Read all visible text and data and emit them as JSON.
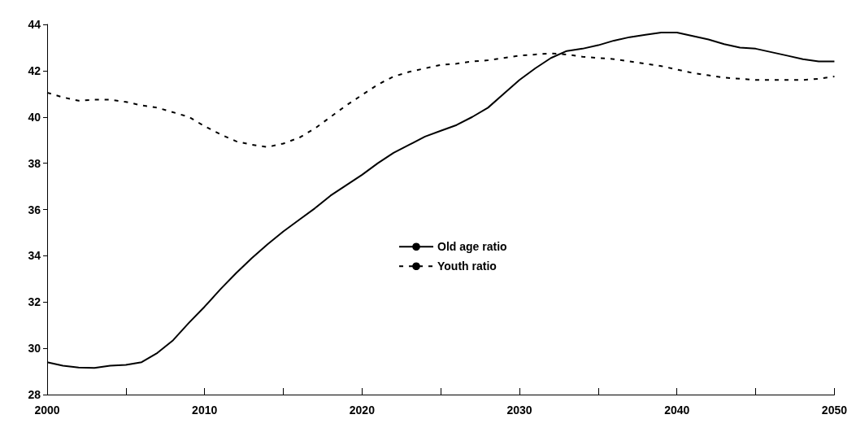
{
  "chart_data": {
    "type": "line",
    "x": [
      2000,
      2001,
      2002,
      2003,
      2004,
      2005,
      2006,
      2007,
      2008,
      2009,
      2010,
      2011,
      2012,
      2013,
      2014,
      2015,
      2016,
      2017,
      2018,
      2019,
      2020,
      2021,
      2022,
      2023,
      2024,
      2025,
      2026,
      2027,
      2028,
      2029,
      2030,
      2031,
      2032,
      2033,
      2034,
      2035,
      2036,
      2037,
      2038,
      2039,
      2040,
      2041,
      2042,
      2043,
      2044,
      2045,
      2046,
      2047,
      2048,
      2049,
      2050
    ],
    "series": [
      {
        "name": "Old age ratio",
        "color": "#000000",
        "line_style": "solid",
        "values": [
          29.4,
          29.25,
          29.17,
          29.15,
          29.25,
          29.28,
          29.4,
          29.8,
          30.35,
          31.1,
          31.8,
          32.55,
          33.25,
          33.9,
          34.5,
          35.05,
          35.55,
          36.05,
          36.6,
          37.05,
          37.5,
          38.0,
          38.45,
          38.8,
          39.15,
          39.4,
          39.65,
          40.0,
          40.4,
          41.0,
          41.6,
          42.1,
          42.55,
          42.85,
          42.95,
          43.1,
          43.3,
          43.45,
          43.55,
          43.65,
          43.65,
          43.5,
          43.35,
          43.15,
          43.0,
          42.95,
          42.8,
          42.65,
          42.5,
          42.4,
          42.4
        ]
      },
      {
        "name": "Youth ratio",
        "color": "#000000",
        "line_style": "dashed",
        "values": [
          41.05,
          40.85,
          40.7,
          40.75,
          40.75,
          40.65,
          40.5,
          40.4,
          40.2,
          40.0,
          39.6,
          39.25,
          38.95,
          38.8,
          38.7,
          38.85,
          39.1,
          39.5,
          40.0,
          40.5,
          40.95,
          41.4,
          41.75,
          41.95,
          42.1,
          42.25,
          42.3,
          42.4,
          42.45,
          42.55,
          42.65,
          42.7,
          42.75,
          42.7,
          42.6,
          42.55,
          42.5,
          42.4,
          42.3,
          42.2,
          42.05,
          41.9,
          41.8,
          41.7,
          41.65,
          41.6,
          41.6,
          41.6,
          41.6,
          41.65,
          41.75
        ]
      }
    ],
    "xlim": [
      2000,
      2050
    ],
    "xticks": [
      2000,
      {
        "value": 2005,
        "label": null
      },
      2010,
      {
        "value": 2015,
        "label": null
      },
      2020,
      {
        "value": 2025,
        "label": null
      },
      2030,
      {
        "value": 2035,
        "label": null
      },
      2040,
      {
        "value": 2045,
        "label": null
      },
      2050
    ],
    "ylim": [
      28,
      44
    ],
    "yticks": [
      28,
      30,
      32,
      34,
      36,
      38,
      40,
      42,
      44
    ],
    "grid": false,
    "legend": "center",
    "marker": "none"
  }
}
